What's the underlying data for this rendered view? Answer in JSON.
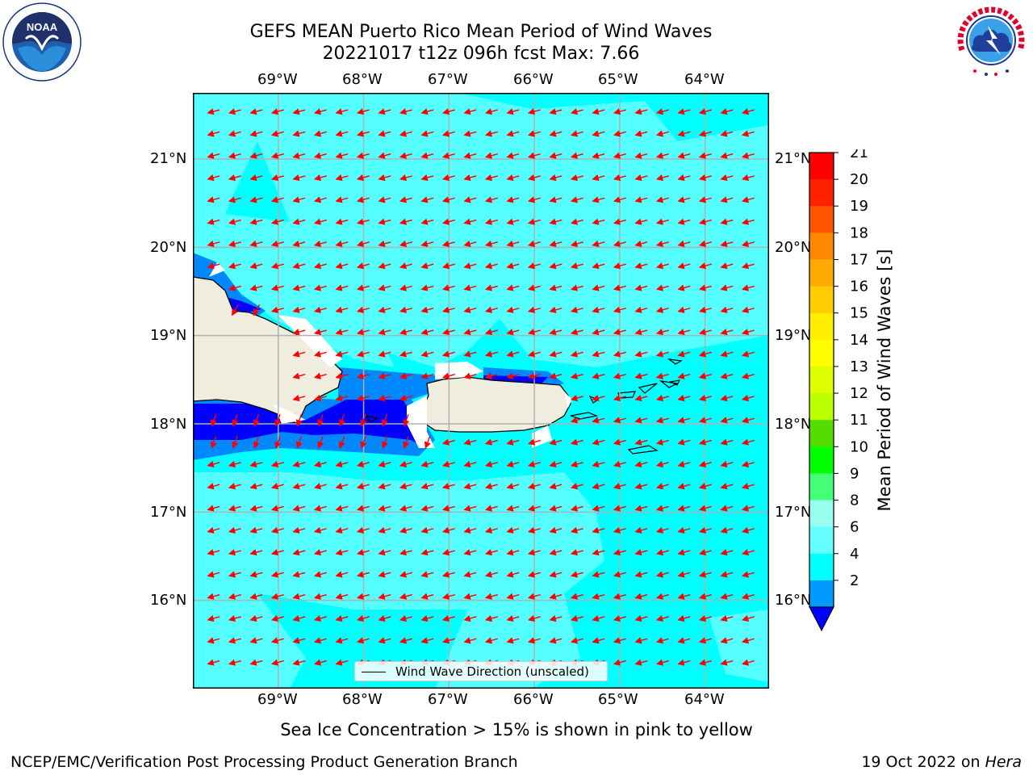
{
  "header": {
    "title_line1": "GEFS MEAN Puerto Rico Mean Period of Wind Waves",
    "title_line2": "20221017 t12z 096h fcst   Max: 7.66"
  },
  "logos": {
    "left": "noaa-logo",
    "right": "national-weather-service-logo"
  },
  "map": {
    "lon_ticks": [
      "69°W",
      "68°W",
      "67°W",
      "66°W",
      "65°W",
      "64°W"
    ],
    "lat_ticks": [
      "21°N",
      "20°N",
      "19°N",
      "18°N",
      "17°N",
      "16°N"
    ],
    "lon_range": [
      -70.0,
      -63.25
    ],
    "lat_range": [
      15.0,
      21.75
    ],
    "grid": true,
    "vector_direction": "toward west-southwest",
    "land_color": "#efedde",
    "ocean_base_color": "#00ffff",
    "arrow_color": "#ff0000"
  },
  "colorbar": {
    "label": "Mean Period of Wind Waves [s]",
    "ticks": [
      "21",
      "20",
      "19",
      "18",
      "17",
      "16",
      "15",
      "14",
      "13",
      "12",
      "11",
      "10",
      "9",
      "8",
      "6",
      "4",
      "2"
    ],
    "colors": [
      "#ff0000",
      "#ff2200",
      "#ff5500",
      "#ff8800",
      "#ffaa00",
      "#ffcc00",
      "#ffee00",
      "#ffff00",
      "#ddff00",
      "#bbff00",
      "#55dd00",
      "#00ff00",
      "#44ff77",
      "#99ffee",
      "#66ffff",
      "#00ffff",
      "#0099ff",
      "#0000ff"
    ]
  },
  "legend": {
    "label": "Wind Wave Direction (unscaled)"
  },
  "footer": {
    "note": "Sea Ice Concentration > 15% is shown in pink to yellow",
    "branch": "NCEP/EMC/Verification Post Processing Product Generation Branch",
    "date": "19 Oct 2022 on ",
    "host": "Hera"
  }
}
